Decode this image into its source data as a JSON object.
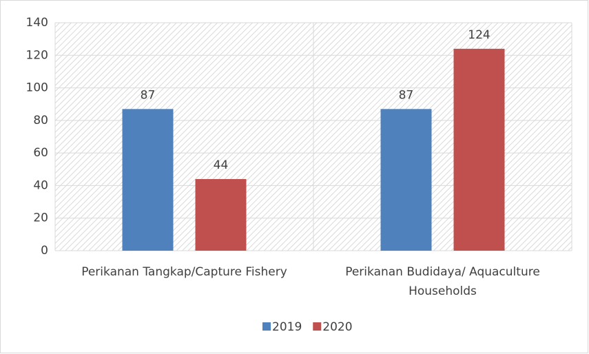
{
  "chart_data": {
    "type": "bar",
    "categories": [
      "Perikanan Tangkap/Capture Fishery",
      "Perikanan Budidaya/ Aquaculture Households"
    ],
    "series": [
      {
        "name": "2019",
        "color": "#4f81bd",
        "values": [
          87,
          87
        ]
      },
      {
        "name": "2020",
        "color": "#c0504d",
        "values": [
          44,
          124
        ]
      }
    ],
    "ylim": [
      0,
      140
    ],
    "yticks": [
      0,
      20,
      40,
      60,
      80,
      100,
      120,
      140
    ],
    "grid": true,
    "legend": "bottom"
  }
}
